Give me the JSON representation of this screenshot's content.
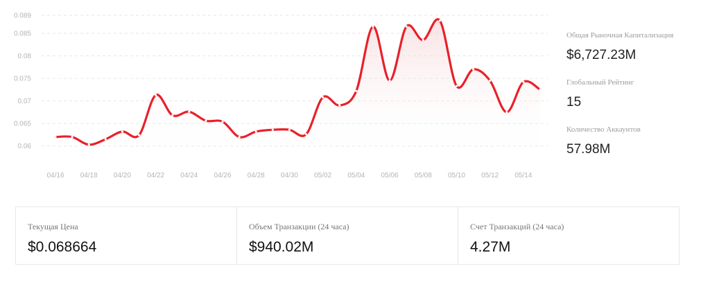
{
  "chart_data": {
    "type": "line",
    "x": [
      "04/16",
      "04/17",
      "04/18",
      "04/19",
      "04/20",
      "04/21",
      "04/22",
      "04/23",
      "04/24",
      "04/25",
      "04/26",
      "04/27",
      "04/28",
      "04/29",
      "04/30",
      "05/01",
      "05/02",
      "05/03",
      "05/04",
      "05/05",
      "05/06",
      "05/07",
      "05/08",
      "05/09",
      "05/10",
      "05/11",
      "05/12",
      "05/13",
      "05/14",
      "05/15"
    ],
    "values": [
      0.062,
      0.062,
      0.0603,
      0.0615,
      0.0632,
      0.0624,
      0.0713,
      0.0668,
      0.0676,
      0.0656,
      0.0654,
      0.062,
      0.0632,
      0.0636,
      0.0636,
      0.0626,
      0.0708,
      0.069,
      0.0722,
      0.0865,
      0.0745,
      0.0865,
      0.0835,
      0.0878,
      0.0733,
      0.077,
      0.0745,
      0.0675,
      0.0742,
      0.0725
    ],
    "x_tick_labels": [
      "04/16",
      "04/18",
      "04/20",
      "04/22",
      "04/24",
      "04/26",
      "04/28",
      "04/30",
      "05/02",
      "05/04",
      "05/06",
      "05/08",
      "05/10",
      "05/12",
      "05/14"
    ],
    "y_ticks": [
      "0.06",
      "0.065",
      "0.07",
      "0.075",
      "0.08",
      "0.085",
      "0.089"
    ],
    "y_tick_values": [
      0.06,
      0.065,
      0.07,
      0.075,
      0.08,
      0.085,
      0.089
    ],
    "ylim": [
      0.0575,
      0.089
    ],
    "title": "",
    "xlabel": "",
    "ylabel": "",
    "grid": true,
    "line_color": "#e8202a",
    "grid_color": "#e6e6e6"
  },
  "side_stats": [
    {
      "label": "Общая Рыночная Капитализация",
      "value": "$6,727.23M"
    },
    {
      "label": "Глобальный Рейтинг",
      "value": "15"
    },
    {
      "label": "Количество Аккаунтов",
      "value": "57.98M"
    }
  ],
  "bottom_stats": [
    {
      "label": "Текущая Цена",
      "value": "$0.068664"
    },
    {
      "label": "Объем Транзакции (24 часа)",
      "value": "$940.02M"
    },
    {
      "label": "Счет Транзакций (24 часа)",
      "value": "4.27M"
    }
  ]
}
